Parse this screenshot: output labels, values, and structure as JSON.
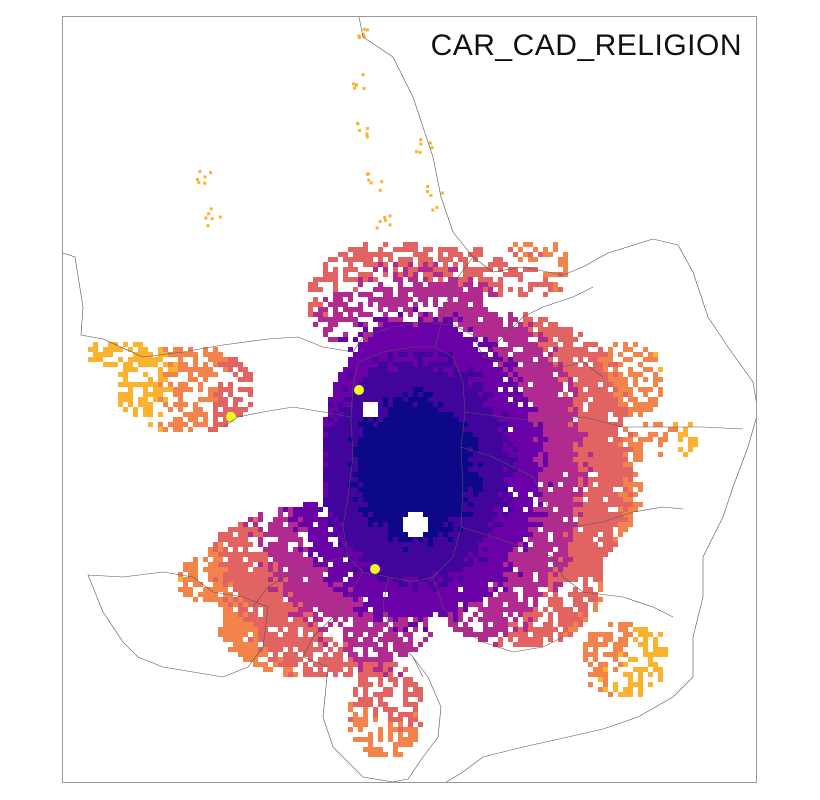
{
  "map": {
    "title": "CAR_CAD_RELIGION",
    "colormap": "plasma",
    "palette": {
      "very_low": "#0d0887",
      "low": "#41049d",
      "mid_low": "#6a00a8",
      "mid": "#b12a90",
      "mid_high": "#e16462",
      "high": "#f2844b",
      "very_high": "#fbb32f",
      "extreme": "#f0f921"
    },
    "background": "#ffffff",
    "boundary_color": "#555555"
  }
}
